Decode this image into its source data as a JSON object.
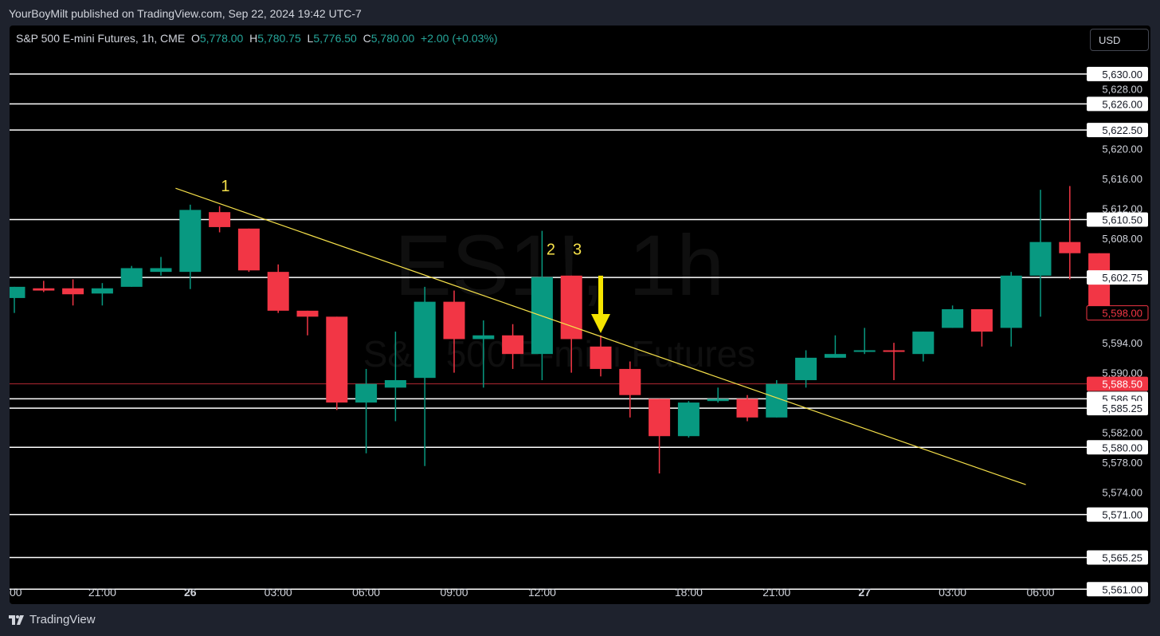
{
  "header": {
    "publisher_text": "YourBoyMilt published on TradingView.com, Sep 22, 2024 19:42 UTC-7"
  },
  "legend": {
    "symbol": "S&P 500 E-mini Futures, 1h, CME",
    "o_label": "O",
    "o_value": "5,778.00",
    "h_label": "H",
    "h_value": "5,780.75",
    "l_label": "L",
    "l_value": "5,776.50",
    "c_label": "C",
    "c_value": "5,780.00",
    "change": "+2.00 (+0.03%)"
  },
  "currency_button": "USD",
  "watermark": {
    "line1": "ES1!, 1h",
    "line2": "S&P 500 E-mini Futures"
  },
  "footer": {
    "brand": "TradingView",
    "logo_icon": "tradingview-logo-icon"
  },
  "colors": {
    "up": "#089981",
    "down": "#f23645",
    "trend": "#f5e04a",
    "level": "#ffffff",
    "background": "#000000"
  },
  "chart_data": {
    "type": "candlestick",
    "x_ticks": [
      "00",
      "21:00",
      "26",
      "03:00",
      "06:00",
      "09:00",
      "12:00",
      "18:00",
      "21:00",
      "27",
      "03:00",
      "06:00"
    ],
    "x_tick_index": [
      -0.5,
      3,
      6,
      9,
      12,
      15,
      18,
      23,
      26,
      29,
      32,
      35
    ],
    "y_ticks": [
      "5,628.00",
      "5,620.00",
      "5,616.00",
      "5,612.00",
      "5,608.00",
      "5,594.00",
      "5,590.00",
      "5,582.00",
      "5,578.00",
      "5,574.00"
    ],
    "y_tick_values": [
      5628,
      5620,
      5616,
      5612,
      5608,
      5594,
      5590,
      5582,
      5578,
      5574
    ],
    "ylim": [
      5559,
      5636.5
    ],
    "candles": [
      {
        "o": 5600.0,
        "h": 5601.5,
        "l": 5598.0,
        "c": 5601.5
      },
      {
        "o": 5601.3,
        "h": 5602.3,
        "l": 5600.8,
        "c": 5601.0
      },
      {
        "o": 5601.3,
        "h": 5602.5,
        "l": 5599.0,
        "c": 5600.5
      },
      {
        "o": 5600.6,
        "h": 5602.0,
        "l": 5599.0,
        "c": 5601.3
      },
      {
        "o": 5601.5,
        "h": 5604.3,
        "l": 5601.5,
        "c": 5604.0
      },
      {
        "o": 5603.5,
        "h": 5605.5,
        "l": 5603.0,
        "c": 5604.0
      },
      {
        "o": 5603.5,
        "h": 5612.5,
        "l": 5601.2,
        "c": 5611.8
      },
      {
        "o": 5611.5,
        "h": 5612.3,
        "l": 5608.8,
        "c": 5609.5
      },
      {
        "o": 5609.3,
        "h": 5609.3,
        "l": 5603.5,
        "c": 5603.7
      },
      {
        "o": 5603.5,
        "h": 5604.5,
        "l": 5598.0,
        "c": 5598.3
      },
      {
        "o": 5598.3,
        "h": 5598.3,
        "l": 5595.0,
        "c": 5597.5
      },
      {
        "o": 5597.5,
        "h": 5597.5,
        "l": 5585.0,
        "c": 5586.0
      },
      {
        "o": 5586.0,
        "h": 5590.5,
        "l": 5579.2,
        "c": 5588.5
      },
      {
        "o": 5588.0,
        "h": 5595.5,
        "l": 5583.5,
        "c": 5589.0
      },
      {
        "o": 5589.3,
        "h": 5601.5,
        "l": 5577.5,
        "c": 5599.5
      },
      {
        "o": 5599.5,
        "h": 5601.0,
        "l": 5590.0,
        "c": 5594.5
      },
      {
        "o": 5594.5,
        "h": 5597.0,
        "l": 5588.0,
        "c": 5595.0
      },
      {
        "o": 5595.0,
        "h": 5596.5,
        "l": 5590.5,
        "c": 5592.5
      },
      {
        "o": 5592.5,
        "h": 5609.0,
        "l": 5589.0,
        "c": 5602.8
      },
      {
        "o": 5603.0,
        "h": 5603.0,
        "l": 5590.0,
        "c": 5594.5
      },
      {
        "o": 5593.5,
        "h": 5595.0,
        "l": 5589.5,
        "c": 5590.5
      },
      {
        "o": 5590.5,
        "h": 5591.5,
        "l": 5584.0,
        "c": 5587.0
      },
      {
        "o": 5586.5,
        "h": 5586.5,
        "l": 5576.5,
        "c": 5581.5
      },
      {
        "o": 5581.5,
        "h": 5586.2,
        "l": 5581.3,
        "c": 5586.0
      },
      {
        "o": 5586.2,
        "h": 5588.0,
        "l": 5586.0,
        "c": 5586.5
      },
      {
        "o": 5586.5,
        "h": 5587.0,
        "l": 5583.5,
        "c": 5584.0
      },
      {
        "o": 5584.0,
        "h": 5589.0,
        "l": 5584.0,
        "c": 5588.5
      },
      {
        "o": 5589.0,
        "h": 5593.0,
        "l": 5588.0,
        "c": 5592.0
      },
      {
        "o": 5592.0,
        "h": 5595.0,
        "l": 5592.0,
        "c": 5592.5
      },
      {
        "o": 5592.8,
        "h": 5596.0,
        "l": 5592.5,
        "c": 5593.0
      },
      {
        "o": 5593.0,
        "h": 5594.0,
        "l": 5589.0,
        "c": 5592.8
      },
      {
        "o": 5592.5,
        "h": 5595.5,
        "l": 5591.5,
        "c": 5595.5
      },
      {
        "o": 5596.0,
        "h": 5599.0,
        "l": 5596.0,
        "c": 5598.5
      },
      {
        "o": 5598.5,
        "h": 5598.5,
        "l": 5593.5,
        "c": 5595.5
      },
      {
        "o": 5596.0,
        "h": 5603.5,
        "l": 5593.5,
        "c": 5603.0
      },
      {
        "o": 5603.0,
        "h": 5614.5,
        "l": 5597.5,
        "c": 5607.5
      },
      {
        "o": 5607.5,
        "h": 5615.0,
        "l": 5602.5,
        "c": 5606.0
      },
      {
        "o": 5606.0,
        "h": 5606.0,
        "l": 5598.0,
        "c": 5598.0
      }
    ],
    "level_lines": [
      5630.0,
      5626.0,
      5622.5,
      5610.5,
      5602.75,
      5586.5,
      5585.25,
      5580.0,
      5571.0,
      5565.25,
      5561.0
    ],
    "level_labels": [
      "5,630.00",
      "5,626.00",
      "5,622.50",
      "5,610.50",
      "5,602.75",
      "5,586.50",
      "5,585.25",
      "5,580.00",
      "5,571.00",
      "5,565.25",
      "5,561.00"
    ],
    "red_line": {
      "value": 5588.5,
      "label": "5,588.50"
    },
    "last_price": {
      "value": 5598.0,
      "label": "5,598.00"
    },
    "trendline": {
      "from": {
        "x": 5.5,
        "y": 5614.7
      },
      "to": {
        "x": 34.5,
        "y": 5575.0
      }
    },
    "annotations": [
      {
        "text": "1",
        "x": 7.2,
        "y": 5614.3
      },
      {
        "text": "2",
        "x": 18.3,
        "y": 5605.8
      },
      {
        "text": "3",
        "x": 19.2,
        "y": 5605.8
      }
    ],
    "arrow": {
      "x": 20.0,
      "from_y": 5603.0,
      "to_y": 5595.3
    },
    "grid": false
  }
}
